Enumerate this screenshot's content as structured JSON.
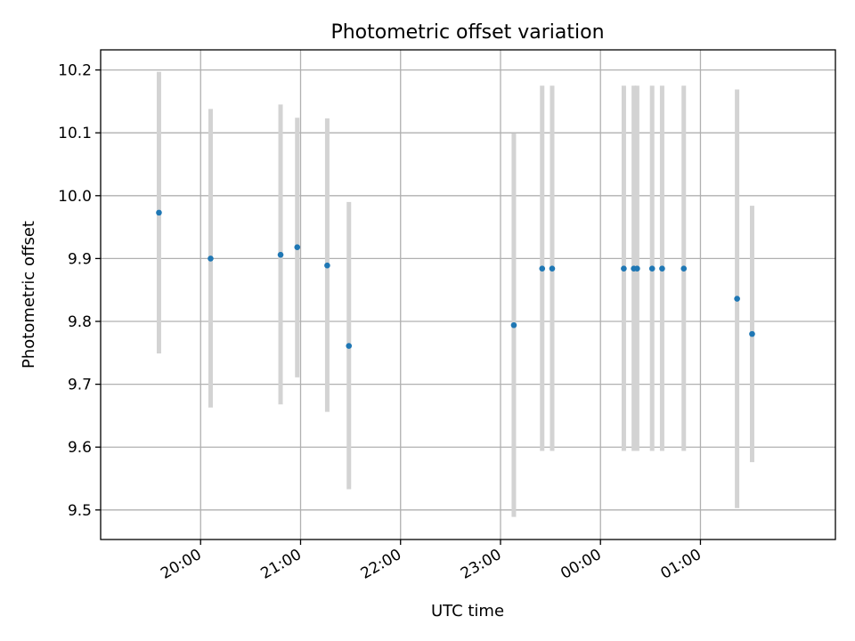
{
  "chart_data": {
    "type": "scatter",
    "title": "Photometric offset variation",
    "xlabel": "UTC time",
    "ylabel": "Photometric offset",
    "xlim_minutes": [
      1140,
      1581
    ],
    "ylim": [
      9.453,
      10.232
    ],
    "x_ticks": [
      {
        "minutes": 1200,
        "label": "20:00"
      },
      {
        "minutes": 1260,
        "label": "21:00"
      },
      {
        "minutes": 1320,
        "label": "22:00"
      },
      {
        "minutes": 1380,
        "label": "23:00"
      },
      {
        "minutes": 1440,
        "label": "00:00"
      },
      {
        "minutes": 1500,
        "label": "01:00"
      }
    ],
    "y_ticks": [
      9.5,
      9.6,
      9.7,
      9.8,
      9.9,
      10.0,
      10.1,
      10.2
    ],
    "y_tick_labels": [
      "9.5",
      "9.6",
      "9.7",
      "9.8",
      "9.9",
      "10.0",
      "10.1",
      "10.2"
    ],
    "grid": true,
    "marker_color": "#1f77b4",
    "errorbar_color": "#d3d3d3",
    "points": [
      {
        "time": "19:35",
        "minutes": 1175,
        "y": 9.973,
        "y_low": 9.749,
        "y_high": 10.197
      },
      {
        "time": "20:06",
        "minutes": 1206,
        "y": 9.9,
        "y_low": 9.663,
        "y_high": 10.138
      },
      {
        "time": "20:48",
        "minutes": 1248,
        "y": 9.906,
        "y_low": 9.668,
        "y_high": 10.145
      },
      {
        "time": "20:58",
        "minutes": 1258,
        "y": 9.918,
        "y_low": 9.711,
        "y_high": 10.124
      },
      {
        "time": "21:16",
        "minutes": 1276,
        "y": 9.889,
        "y_low": 9.656,
        "y_high": 10.123
      },
      {
        "time": "21:29",
        "minutes": 1289,
        "y": 9.761,
        "y_low": 9.533,
        "y_high": 9.99
      },
      {
        "time": "23:08",
        "minutes": 1388,
        "y": 9.794,
        "y_low": 9.489,
        "y_high": 10.099
      },
      {
        "time": "23:25",
        "minutes": 1405,
        "y": 9.884,
        "y_low": 9.594,
        "y_high": 10.175
      },
      {
        "time": "23:31",
        "minutes": 1411,
        "y": 9.884,
        "y_low": 9.594,
        "y_high": 10.175
      },
      {
        "time": "00:14",
        "minutes": 1454,
        "y": 9.884,
        "y_low": 9.594,
        "y_high": 10.175
      },
      {
        "time": "00:20",
        "minutes": 1460,
        "y": 9.884,
        "y_low": 9.594,
        "y_high": 10.175
      },
      {
        "time": "00:22",
        "minutes": 1462,
        "y": 9.884,
        "y_low": 9.594,
        "y_high": 10.175
      },
      {
        "time": "00:31",
        "minutes": 1471,
        "y": 9.884,
        "y_low": 9.594,
        "y_high": 10.175
      },
      {
        "time": "00:37",
        "minutes": 1477,
        "y": 9.884,
        "y_low": 9.594,
        "y_high": 10.175
      },
      {
        "time": "00:50",
        "minutes": 1490,
        "y": 9.884,
        "y_low": 9.594,
        "y_high": 10.175
      },
      {
        "time": "01:22",
        "minutes": 1522,
        "y": 9.836,
        "y_low": 9.503,
        "y_high": 10.169
      },
      {
        "time": "01:31",
        "minutes": 1531,
        "y": 9.78,
        "y_low": 9.576,
        "y_high": 9.984
      }
    ]
  }
}
